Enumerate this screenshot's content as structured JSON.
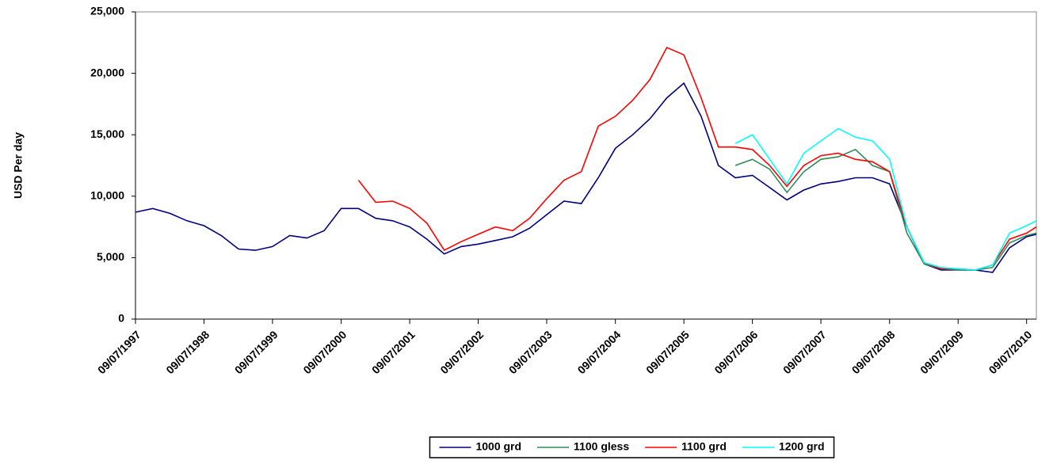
{
  "chart_data": {
    "type": "line",
    "y_label": "USD Per day",
    "x": [
      "09/07/1997",
      "09/10/1997",
      "09/01/1998",
      "09/04/1998",
      "09/07/1998",
      "09/10/1998",
      "09/01/1999",
      "09/04/1999",
      "09/07/1999",
      "09/10/1999",
      "09/01/2000",
      "09/04/2000",
      "09/07/2000",
      "09/10/2000",
      "09/01/2001",
      "09/04/2001",
      "09/07/2001",
      "09/10/2001",
      "09/01/2002",
      "09/04/2002",
      "09/07/2002",
      "09/10/2002",
      "09/01/2003",
      "09/04/2003",
      "09/07/2003",
      "09/10/2003",
      "09/01/2004",
      "09/04/2004",
      "09/07/2004",
      "09/10/2004",
      "09/01/2005",
      "09/04/2005",
      "09/07/2005",
      "09/10/2005",
      "09/01/2006",
      "09/04/2006",
      "09/07/2006",
      "09/10/2006",
      "09/01/2007",
      "09/04/2007",
      "09/07/2007",
      "09/10/2007",
      "09/01/2008",
      "09/04/2008",
      "09/07/2008",
      "09/10/2008",
      "09/01/2009",
      "09/04/2009",
      "09/07/2009",
      "09/10/2009",
      "09/01/2010",
      "09/04/2010",
      "09/07/2010",
      "30/08/2010"
    ],
    "series": [
      {
        "name": "1000 grd",
        "color": "#000080",
        "values": [
          8700,
          9000,
          8600,
          8000,
          7600,
          6800,
          5700,
          5600,
          5900,
          6800,
          6600,
          7200,
          9000,
          9000,
          8200,
          8000,
          7500,
          6500,
          5300,
          5900,
          6100,
          6400,
          6700,
          7400,
          8500,
          9600,
          9400,
          11500,
          13900,
          15000,
          16300,
          18000,
          19200,
          16500,
          12500,
          11500,
          11700,
          10700,
          9700,
          10500,
          11000,
          11200,
          11500,
          11500,
          11000,
          7500,
          4500,
          4000,
          4000,
          4000,
          3800,
          5800,
          6700,
          6900
        ]
      },
      {
        "name": "1100 gless",
        "color": "#2e8b57",
        "values": [
          null,
          null,
          null,
          null,
          null,
          null,
          null,
          null,
          null,
          null,
          null,
          null,
          null,
          null,
          null,
          null,
          null,
          null,
          null,
          null,
          null,
          null,
          null,
          null,
          null,
          null,
          null,
          null,
          null,
          null,
          null,
          null,
          null,
          null,
          null,
          12500,
          13000,
          12200,
          10300,
          12000,
          13000,
          13200,
          13800,
          12500,
          12000,
          7000,
          4500,
          4100,
          4000,
          4000,
          4200,
          6200,
          6800,
          7000
        ]
      },
      {
        "name": "1100 grd",
        "color": "#ff0000",
        "values": [
          null,
          null,
          null,
          null,
          null,
          null,
          null,
          null,
          null,
          null,
          null,
          null,
          null,
          11300,
          9500,
          9600,
          9000,
          7800,
          5600,
          6300,
          6900,
          7500,
          7200,
          8200,
          9800,
          11300,
          12000,
          15700,
          16500,
          17800,
          19500,
          22100,
          21500,
          18000,
          14000,
          14000,
          13800,
          12500,
          10800,
          12500,
          13300,
          13500,
          13000,
          12800,
          12000,
          7500,
          4600,
          4100,
          4100,
          4000,
          4400,
          6500,
          7000,
          7500
        ]
      },
      {
        "name": "1200 grd",
        "color": "#00ffff",
        "values": [
          null,
          null,
          null,
          null,
          null,
          null,
          null,
          null,
          null,
          null,
          null,
          null,
          null,
          null,
          null,
          null,
          null,
          null,
          null,
          null,
          null,
          null,
          null,
          null,
          null,
          null,
          null,
          null,
          null,
          null,
          null,
          null,
          null,
          null,
          null,
          14300,
          15000,
          13000,
          11000,
          13500,
          14500,
          15500,
          14800,
          14500,
          13000,
          7500,
          4600,
          4200,
          4100,
          4000,
          4400,
          7000,
          7600,
          8000
        ]
      }
    ],
    "xlim": [
      "09/07/1997",
      "30/08/2010"
    ],
    "xticks": [
      "09/07/1997",
      "09/07/1998",
      "09/07/1999",
      "09/07/2000",
      "09/07/2001",
      "09/07/2002",
      "09/07/2003",
      "09/07/2004",
      "09/07/2005",
      "09/07/2006",
      "09/07/2007",
      "09/07/2008",
      "09/07/2009",
      "09/07/2010"
    ],
    "ylim": [
      0,
      25000
    ],
    "yticks": [
      0,
      {
        "value": 5000,
        "label": "5,000"
      },
      {
        "value": 10000,
        "label": "10,000"
      },
      {
        "value": 15000,
        "label": "15,000"
      },
      {
        "value": 20000,
        "label": "20,000"
      },
      {
        "value": 25000,
        "label": "25,000"
      }
    ],
    "legend": "bottom"
  }
}
